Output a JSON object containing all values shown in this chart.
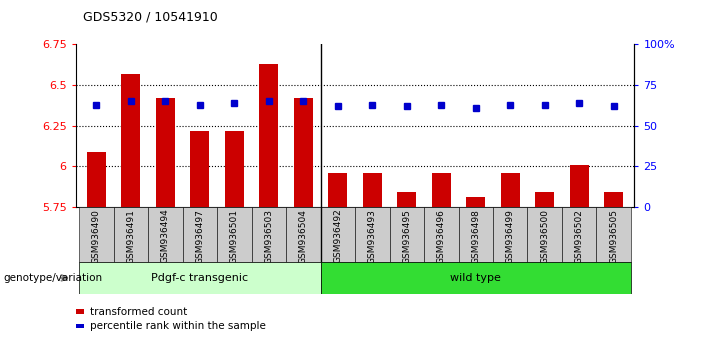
{
  "title": "GDS5320 / 10541910",
  "samples": [
    "GSM936490",
    "GSM936491",
    "GSM936494",
    "GSM936497",
    "GSM936501",
    "GSM936503",
    "GSM936504",
    "GSM936492",
    "GSM936493",
    "GSM936495",
    "GSM936496",
    "GSM936498",
    "GSM936499",
    "GSM936500",
    "GSM936502",
    "GSM936505"
  ],
  "red_values": [
    6.09,
    6.57,
    6.42,
    6.22,
    6.22,
    6.63,
    6.42,
    5.96,
    5.96,
    5.84,
    5.96,
    5.81,
    5.96,
    5.84,
    6.01,
    5.84
  ],
  "blue_values": [
    63,
    65,
    65,
    63,
    64,
    65,
    65,
    62,
    63,
    62,
    63,
    61,
    63,
    63,
    64,
    62
  ],
  "ylim_left": [
    5.75,
    6.75
  ],
  "ylim_right": [
    0,
    100
  ],
  "yticks_left": [
    5.75,
    6.0,
    6.25,
    6.5,
    6.75
  ],
  "ytick_labels_left": [
    "5.75",
    "6",
    "6.25",
    "6.5",
    "6.75"
  ],
  "yticks_right": [
    0,
    25,
    50,
    75,
    100
  ],
  "ytick_labels_right": [
    "0",
    "25",
    "50",
    "75",
    "100%"
  ],
  "group1_label": "Pdgf-c transgenic",
  "group2_label": "wild type",
  "group1_count": 7,
  "group2_count": 9,
  "genotype_label": "genotype/variation",
  "legend_red": "transformed count",
  "legend_blue": "percentile rank within the sample",
  "bar_color": "#CC0000",
  "dot_color": "#0000CC",
  "group1_color": "#CCFFCC",
  "group2_color": "#33DD33",
  "xtick_bg": "#CCCCCC",
  "bar_bottom": 5.75,
  "dotted_grid_values": [
    6.0,
    6.25,
    6.5
  ],
  "bar_width": 0.55
}
